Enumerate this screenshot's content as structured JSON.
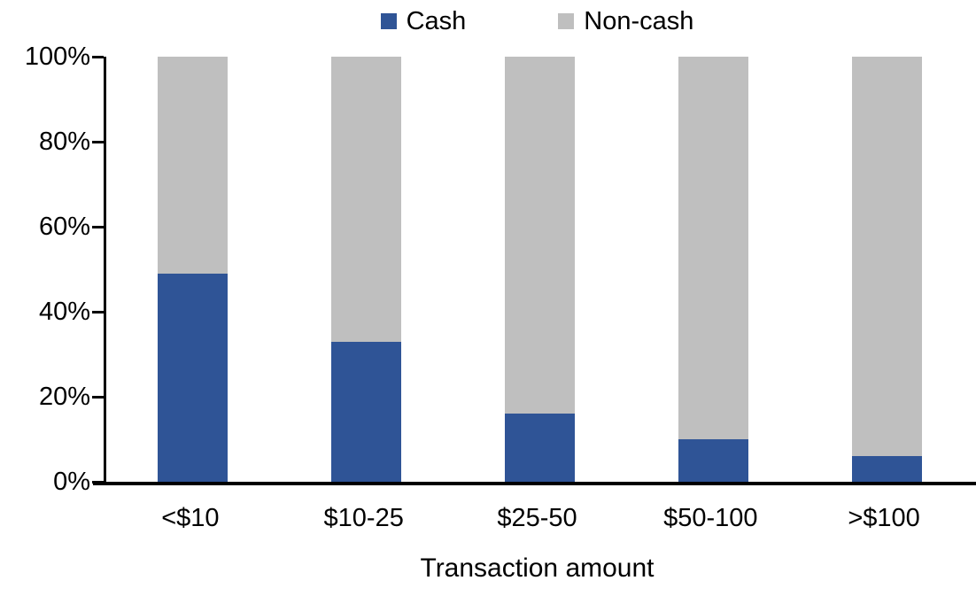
{
  "chart_data": {
    "type": "bar",
    "stacked": true,
    "percent_stacked": true,
    "title": "",
    "xlabel": "Transaction amount",
    "ylabel": "",
    "categories": [
      "<$10",
      "$10-25",
      "$25-50",
      "$50-100",
      ">$100"
    ],
    "series": [
      {
        "name": "Cash",
        "color": "#2F5496",
        "values": [
          49,
          33,
          16,
          10,
          6
        ]
      },
      {
        "name": "Non-cash",
        "color": "#BFBFBF",
        "values": [
          51,
          67,
          84,
          90,
          94
        ]
      }
    ],
    "ylim": [
      0,
      100
    ],
    "ytick_values": [
      0,
      20,
      40,
      60,
      80,
      100
    ],
    "ytick_labels": [
      "0%",
      "20%",
      "40%",
      "60%",
      "80%",
      "100%"
    ],
    "grid": false,
    "legend_position": "top"
  },
  "colors": {
    "background": "#FFFFFF",
    "axis": "#000000",
    "text": "#000000",
    "cash": "#2F5496",
    "noncash": "#BFBFBF"
  }
}
